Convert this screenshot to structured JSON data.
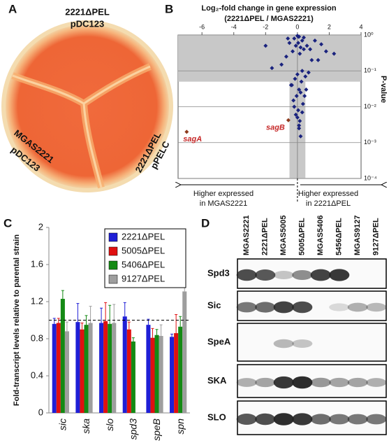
{
  "panel_labels": [
    "A",
    "B",
    "C",
    "D"
  ],
  "plate": {
    "labels": [
      [
        "2221ΔPEL",
        "pDC123"
      ],
      [
        "MGAS2221",
        "pDC123"
      ],
      [
        "2221ΔPEL",
        "pPELC"
      ]
    ]
  },
  "chart_data": [
    {
      "type": "scatter",
      "title": "Log₂-fold change in gene expression",
      "subtitle": "(2221ΔPEL / MGAS2221)",
      "y_label": "P-value",
      "color": "#1a237e",
      "log_y": true,
      "xlim": [
        -7.5,
        4
      ],
      "xticks": [
        -6,
        -4,
        -2,
        0,
        2,
        4
      ],
      "ylim": [
        0.0001,
        1
      ],
      "yticks": [
        {
          "value": 1,
          "label": "10⁰"
        },
        {
          "value": 0.1,
          "label": "10⁻¹"
        },
        {
          "value": 0.01,
          "label": "10⁻²"
        },
        {
          "value": 0.001,
          "label": "10⁻³"
        },
        {
          "value": 0.0001,
          "label": "10⁻⁴"
        }
      ],
      "grid": true,
      "shade_x": [
        -0.5,
        0.5
      ],
      "shade_y": [
        0.05,
        1
      ],
      "x": [
        0.1,
        -0.2,
        0.3,
        0.05,
        -0.1,
        0.2,
        0.4,
        -0.3,
        0.15,
        0.6,
        -0.5,
        0.8,
        1.1,
        1.5,
        2.3,
        0.9,
        -0.7,
        -1.0,
        -1.6,
        -2.0,
        0.3,
        0.0,
        -0.15,
        0.25,
        0.5,
        0.7,
        -0.4,
        1.3,
        1.8,
        0.1,
        -0.05,
        0.2,
        -0.25,
        0.35,
        0.45,
        0.05,
        -0.1,
        0.15,
        0.0,
        0.1,
        -0.2,
        0.3,
        0.55,
        0.2,
        -0.35,
        0.1,
        0.05,
        0.0,
        -0.6,
        0.4
      ],
      "values": [
        0.9,
        0.8,
        0.7,
        0.6,
        0.5,
        0.45,
        0.4,
        0.35,
        0.3,
        0.5,
        0.6,
        0.4,
        0.7,
        0.55,
        0.3,
        0.2,
        0.25,
        0.15,
        0.12,
        0.5,
        0.1,
        0.08,
        0.06,
        0.05,
        0.07,
        0.09,
        0.04,
        0.2,
        0.35,
        0.03,
        0.02,
        0.025,
        0.015,
        0.012,
        0.02,
        0.008,
        0.006,
        0.004,
        0.005,
        0.003,
        0.01,
        0.007,
        0.03,
        0.0015,
        0.04,
        0.0025,
        0.9,
        0.95,
        0.8,
        0.85
      ],
      "annotations": [
        {
          "text": "sagA",
          "x": -6.96,
          "y": 0.002,
          "color": "#c62828"
        },
        {
          "text": "sagB",
          "x": -0.57,
          "y": 0.0042,
          "color": "#c62828"
        }
      ],
      "arrow_labels": [
        [
          "Higher expressed",
          "in MGAS2221"
        ],
        [
          "Higher expressed",
          "in 2221ΔPEL"
        ]
      ]
    },
    {
      "type": "bar",
      "y_label": "Fold-transcript levels relative to parental strain",
      "categories": [
        "sic",
        "ska",
        "slo",
        "spd3",
        "speB",
        "spn"
      ],
      "ylim": [
        0,
        2
      ],
      "yticks": [
        0,
        0.4,
        0.8,
        1.2,
        1.6,
        2
      ],
      "reference_line": 1,
      "series": [
        {
          "name": "2221ΔPEL",
          "color": "#1f1fd6",
          "values": [
            0.96,
            0.98,
            0.97,
            1.04,
            0.95,
            0.82
          ],
          "errors": [
            0.06,
            0.2,
            0.16,
            0.15,
            0.06,
            0.03
          ]
        },
        {
          "name": "5005ΔPEL",
          "color": "#e01010",
          "values": [
            0.97,
            0.9,
            0.99,
            0.9,
            0.81,
            0.86
          ],
          "errors": [
            0.05,
            0.07,
            0.2,
            0.08,
            0.1,
            0.2
          ]
        },
        {
          "name": "5406ΔPEL",
          "color": "#148a14",
          "values": [
            1.23,
            0.95,
            0.96,
            0.77,
            0.84,
            0.93
          ],
          "errors": [
            0.09,
            0.1,
            0.2,
            0.04,
            0.06,
            0.11
          ]
        },
        {
          "name": "9127ΔPEL",
          "color": "#9e9e9e",
          "values": [
            0.88,
            0.97,
            0.97,
            null,
            0.83,
            1.31
          ],
          "errors": [
            0.1,
            0.18,
            0.2,
            null,
            0.12,
            0.43
          ]
        }
      ]
    }
  ],
  "blot": {
    "columns": [
      "MGAS2221",
      "2221ΔPEL",
      "MGAS5005",
      "5005ΔPEL",
      "MGAS5406",
      "5456ΔPEL",
      "MGAS9127",
      "9127ΔPEL"
    ],
    "rows": [
      "Spd3",
      "Sic",
      "SpeA",
      "SKA",
      "SLO"
    ]
  }
}
